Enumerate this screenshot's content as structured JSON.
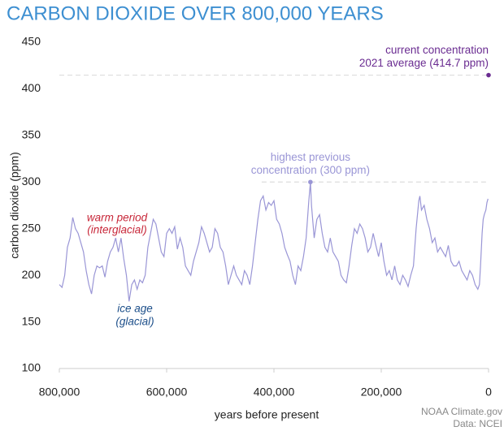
{
  "chart_data": {
    "type": "line",
    "title": "CARBON DIOXIDE OVER 800,000 YEARS",
    "ylabel": "carbon dioxide (ppm)",
    "xlabel": "years before present",
    "source": [
      "NOAA Climate.gov",
      "Data: NCEI"
    ],
    "annotations": [
      "warm period",
      "(interglacial)",
      "ice age",
      "(glacial)"
    ],
    "highlights": [
      {
        "label": [
          "highest previous",
          "concentration (300 ppm)"
        ],
        "x": 332000,
        "y": 300,
        "color": "#9a96d6"
      },
      {
        "label": [
          "current concentration",
          "2021 average (414.7 ppm)"
        ],
        "x": 0,
        "y": 414.7,
        "color": "#6a2c91"
      }
    ],
    "xlim": [
      800000,
      0
    ],
    "ylim": [
      100,
      450
    ],
    "xticks": [
      {
        "value": 800000,
        "label": "800,000"
      },
      {
        "value": 600000,
        "label": "600,000"
      },
      {
        "value": 400000,
        "label": "400,000"
      },
      {
        "value": 200000,
        "label": "200,000"
      },
      0
    ],
    "yticks": [
      100,
      150,
      200,
      250,
      300,
      350,
      400,
      450
    ],
    "x": [
      800000,
      795000,
      790000,
      785000,
      780000,
      775000,
      770000,
      765000,
      760000,
      755000,
      750000,
      745000,
      740000,
      735000,
      730000,
      725000,
      720000,
      715000,
      710000,
      705000,
      700000,
      695000,
      690000,
      685000,
      680000,
      675000,
      670000,
      665000,
      660000,
      655000,
      650000,
      645000,
      640000,
      635000,
      630000,
      625000,
      620000,
      615000,
      610000,
      605000,
      600000,
      595000,
      590000,
      585000,
      580000,
      575000,
      570000,
      565000,
      560000,
      555000,
      550000,
      545000,
      540000,
      535000,
      530000,
      525000,
      520000,
      515000,
      510000,
      505000,
      500000,
      495000,
      490000,
      485000,
      480000,
      475000,
      470000,
      465000,
      460000,
      455000,
      450000,
      445000,
      440000,
      435000,
      430000,
      425000,
      420000,
      415000,
      410000,
      405000,
      400000,
      395000,
      390000,
      385000,
      380000,
      375000,
      370000,
      365000,
      360000,
      355000,
      350000,
      345000,
      340000,
      335000,
      332000,
      330000,
      325000,
      320000,
      315000,
      310000,
      305000,
      300000,
      295000,
      290000,
      285000,
      280000,
      275000,
      270000,
      265000,
      260000,
      255000,
      250000,
      245000,
      240000,
      235000,
      230000,
      225000,
      220000,
      215000,
      210000,
      205000,
      200000,
      195000,
      190000,
      185000,
      180000,
      175000,
      170000,
      165000,
      160000,
      155000,
      150000,
      145000,
      140000,
      135000,
      130000,
      128000,
      125000,
      120000,
      115000,
      110000,
      105000,
      100000,
      95000,
      90000,
      85000,
      80000,
      75000,
      70000,
      65000,
      60000,
      55000,
      50000,
      45000,
      40000,
      35000,
      30000,
      25000,
      20000,
      17000,
      15000,
      12000,
      10000,
      8000,
      5000,
      3000,
      1000
    ],
    "series": [
      {
        "color": "#9a96d6",
        "values": [
          190,
          187,
          200,
          230,
          240,
          262,
          250,
          245,
          235,
          225,
          205,
          190,
          180,
          200,
          210,
          208,
          210,
          198,
          215,
          225,
          230,
          240,
          225,
          240,
          218,
          200,
          172,
          190,
          195,
          185,
          195,
          192,
          200,
          230,
          245,
          260,
          255,
          240,
          225,
          220,
          245,
          250,
          245,
          252,
          228,
          240,
          230,
          210,
          205,
          200,
          215,
          225,
          235,
          252,
          245,
          235,
          225,
          230,
          250,
          245,
          230,
          225,
          210,
          190,
          200,
          210,
          200,
          195,
          190,
          205,
          200,
          190,
          210,
          235,
          260,
          280,
          285,
          270,
          278,
          275,
          280,
          260,
          255,
          245,
          230,
          222,
          215,
          200,
          190,
          210,
          205,
          220,
          240,
          280,
          300,
          275,
          240,
          260,
          265,
          245,
          230,
          225,
          240,
          225,
          220,
          215,
          200,
          195,
          192,
          210,
          232,
          250,
          245,
          255,
          250,
          240,
          225,
          230,
          245,
          232,
          220,
          235,
          215,
          200,
          205,
          195,
          210,
          195,
          190,
          200,
          195,
          188,
          200,
          210,
          250,
          280,
          285,
          270,
          275,
          260,
          250,
          235,
          240,
          225,
          230,
          225,
          220,
          232,
          215,
          210,
          210,
          215,
          205,
          200,
          195,
          205,
          200,
          190,
          185,
          190,
          210,
          245,
          260,
          265,
          270,
          278,
          282
        ]
      }
    ]
  }
}
